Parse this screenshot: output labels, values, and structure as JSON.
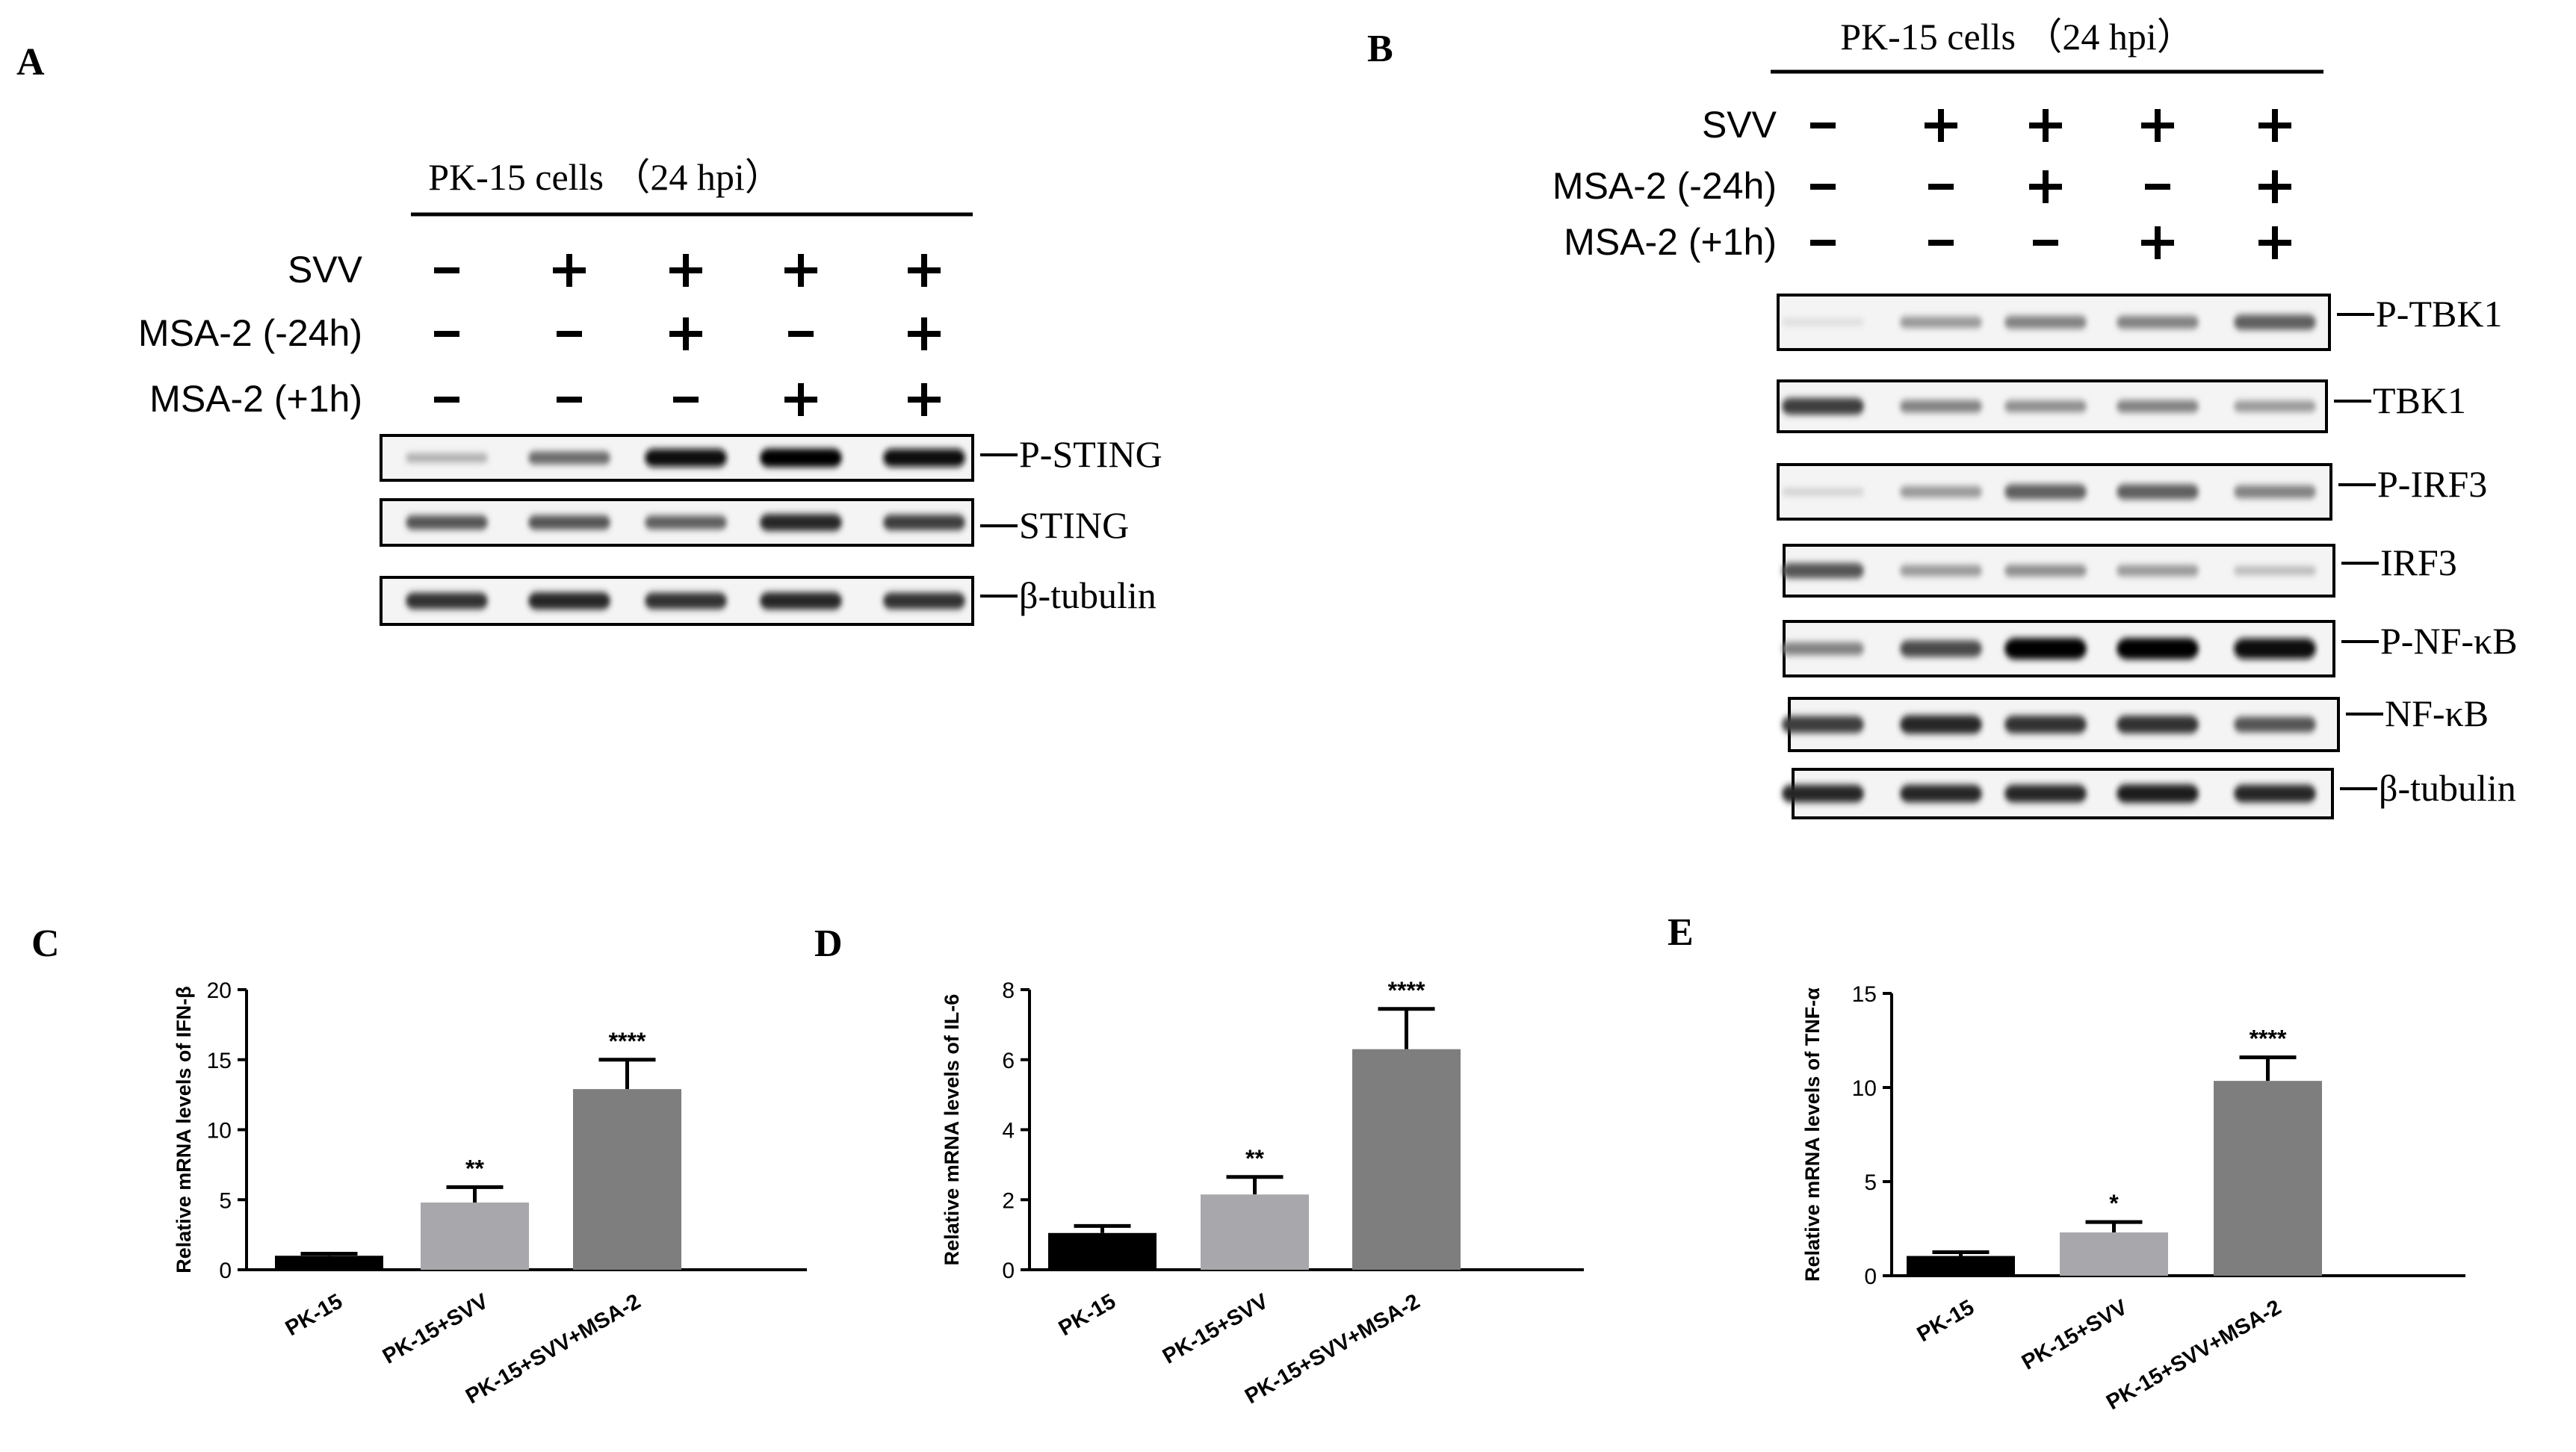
{
  "panels": {
    "A": {
      "letter": "A",
      "header": "PK-15 cells （24 hpi）",
      "conditions": [
        {
          "label": "SVV",
          "signs": [
            "-",
            "+",
            "+",
            "+",
            "+"
          ]
        },
        {
          "label": "MSA-2 (-24h)",
          "signs": [
            "-",
            "-",
            "+",
            "-",
            "+"
          ]
        },
        {
          "label": "MSA-2 (+1h)",
          "signs": [
            "-",
            "-",
            "-",
            "+",
            "+"
          ]
        }
      ],
      "blots": [
        {
          "label": "P-STING",
          "intensities": [
            0.25,
            0.55,
            0.95,
            1.0,
            0.95
          ]
        },
        {
          "label": "STING",
          "intensities": [
            0.65,
            0.65,
            0.6,
            0.85,
            0.75
          ]
        },
        {
          "label": "β-tubulin",
          "intensities": [
            0.8,
            0.85,
            0.8,
            0.85,
            0.8
          ]
        }
      ]
    },
    "B": {
      "letter": "B",
      "header": "PK-15 cells （24 hpi）",
      "conditions": [
        {
          "label": "SVV",
          "signs": [
            "-",
            "+",
            "+",
            "+",
            "+"
          ]
        },
        {
          "label": "MSA-2 (-24h)",
          "signs": [
            "-",
            "-",
            "+",
            "-",
            "+"
          ]
        },
        {
          "label": "MSA-2 (+1h)",
          "signs": [
            "-",
            "-",
            "-",
            "+",
            "+"
          ]
        }
      ],
      "blots": [
        {
          "label": "P-TBK1",
          "intensities": [
            0.05,
            0.35,
            0.45,
            0.45,
            0.6
          ]
        },
        {
          "label": "TBK1",
          "intensities": [
            0.75,
            0.45,
            0.4,
            0.45,
            0.35
          ]
        },
        {
          "label": "P-IRF3",
          "intensities": [
            0.1,
            0.35,
            0.6,
            0.6,
            0.45
          ]
        },
        {
          "label": "IRF3",
          "intensities": [
            0.65,
            0.35,
            0.4,
            0.35,
            0.2
          ]
        },
        {
          "label": "P-NF-κB",
          "intensities": [
            0.45,
            0.7,
            1.0,
            1.0,
            0.95
          ]
        },
        {
          "label": "NF-κB",
          "intensities": [
            0.75,
            0.85,
            0.8,
            0.8,
            0.65
          ]
        },
        {
          "label": "β-tubulin",
          "intensities": [
            0.85,
            0.85,
            0.85,
            0.9,
            0.85
          ]
        }
      ]
    }
  },
  "chart_data": [
    {
      "panel": "C",
      "type": "bar",
      "categories": [
        "PK-15",
        "PK-15+SVV",
        "PK-15+SVV+MSA-2"
      ],
      "values": [
        1.0,
        4.8,
        12.9
      ],
      "errors": [
        0.15,
        1.1,
        2.1
      ],
      "significance": [
        "",
        "**",
        "****"
      ],
      "ylabel": "Relative mRNA levels of IFN-β",
      "ylim": [
        0,
        20
      ],
      "yticks": [
        "0",
        "5",
        "10",
        "15",
        "20"
      ],
      "colors": [
        "#000000",
        "#a8a8ac",
        "#7e7e7e"
      ]
    },
    {
      "panel": "D",
      "type": "bar",
      "categories": [
        "PK-15",
        "PK-15+SVV",
        "PK-15+SVV+MSA-2"
      ],
      "values": [
        1.05,
        2.15,
        6.3
      ],
      "errors": [
        0.2,
        0.5,
        1.15
      ],
      "significance": [
        "",
        "**",
        "****"
      ],
      "ylabel": "Relative mRNA levels of IL-6",
      "ylim": [
        0,
        8
      ],
      "yticks": [
        "0",
        "2",
        "4",
        "6",
        "8"
      ],
      "colors": [
        "#000000",
        "#a8a8ac",
        "#7e7e7e"
      ]
    },
    {
      "panel": "E",
      "type": "bar",
      "categories": [
        "PK-15",
        "PK-15+SVV",
        "PK-15+SVV+MSA-2"
      ],
      "values": [
        1.05,
        2.3,
        10.35
      ],
      "errors": [
        0.2,
        0.55,
        1.25
      ],
      "significance": [
        "",
        "*",
        "****"
      ],
      "ylabel": "Relative mRNA levels of TNF-α",
      "ylim": [
        0,
        15
      ],
      "yticks": [
        "0",
        "5",
        "10",
        "15"
      ],
      "colors": [
        "#000000",
        "#a8a8ac",
        "#7e7e7e"
      ]
    }
  ]
}
